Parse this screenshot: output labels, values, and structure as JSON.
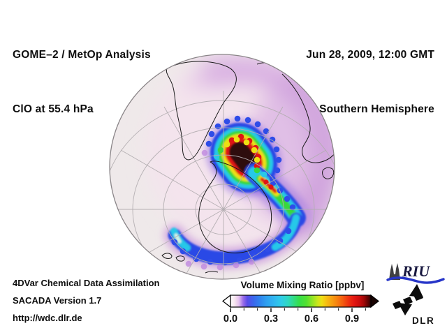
{
  "header": {
    "title_line1": "GOME–2 / MetOp Analysis",
    "title_line2": "ClO at 55.4 hPa",
    "date_line": "Jun 28, 2009, 12:00 GMT",
    "region_line": "Southern Hemisphere"
  },
  "footer": {
    "line1": "4DVar Chemical Data Assimilation",
    "line2": "SACADA Version 1.7",
    "line3": "http://wdc.dlr.de"
  },
  "colorbar": {
    "title": "Volume Mixing Ratio [ppbv]",
    "tick_labels": [
      "0.0",
      "0.3",
      "0.6",
      "0.9"
    ],
    "major_ticks": [
      0,
      0.3,
      0.6,
      0.9
    ],
    "minor_ticks": [
      0,
      0.1,
      0.2,
      0.3,
      0.4,
      0.5,
      0.6,
      0.7,
      0.8,
      0.9,
      1.0
    ],
    "gradient": [
      {
        "at": 0,
        "color": "#ffffff"
      },
      {
        "at": 3,
        "color": "#f7e6ef"
      },
      {
        "at": 6,
        "color": "#e3c0ee"
      },
      {
        "at": 9,
        "color": "#9a6ce8"
      },
      {
        "at": 12,
        "color": "#5a4ce8"
      },
      {
        "at": 16,
        "color": "#3b64ec"
      },
      {
        "at": 21,
        "color": "#2f84ee"
      },
      {
        "at": 26,
        "color": "#2fa2f0"
      },
      {
        "at": 31,
        "color": "#30b6f0"
      },
      {
        "at": 36,
        "color": "#2fcce8"
      },
      {
        "at": 41,
        "color": "#2fd8c0"
      },
      {
        "at": 45,
        "color": "#31dc84"
      },
      {
        "at": 49,
        "color": "#36de4a"
      },
      {
        "at": 54,
        "color": "#52e032"
      },
      {
        "at": 58,
        "color": "#8ce426"
      },
      {
        "at": 62,
        "color": "#c8e61c"
      },
      {
        "at": 65,
        "color": "#eede14"
      },
      {
        "at": 68,
        "color": "#f6c212"
      },
      {
        "at": 72,
        "color": "#f7a111"
      },
      {
        "at": 76,
        "color": "#f78110"
      },
      {
        "at": 80,
        "color": "#f45c10"
      },
      {
        "at": 84,
        "color": "#ee3310"
      },
      {
        "at": 88,
        "color": "#e41812"
      },
      {
        "at": 92,
        "color": "#c90d0d"
      },
      {
        "at": 95,
        "color": "#a30707"
      },
      {
        "at": 98,
        "color": "#5e0303"
      },
      {
        "at": 100,
        "color": "#2a0202"
      }
    ],
    "under_range_arrow_color": "#ffffff",
    "over_range_arrow_color": "#190302"
  },
  "map_colors": {
    "ocean_background": "#efe9ea",
    "coastline": "#1b1b1b",
    "graticule": "#b2adb0",
    "diffuse_low_clo": "#c48bd8",
    "plume_core_max": "#2d100e"
  },
  "logos": {
    "riu_text": "RIU",
    "dlr_text": "DLR"
  }
}
